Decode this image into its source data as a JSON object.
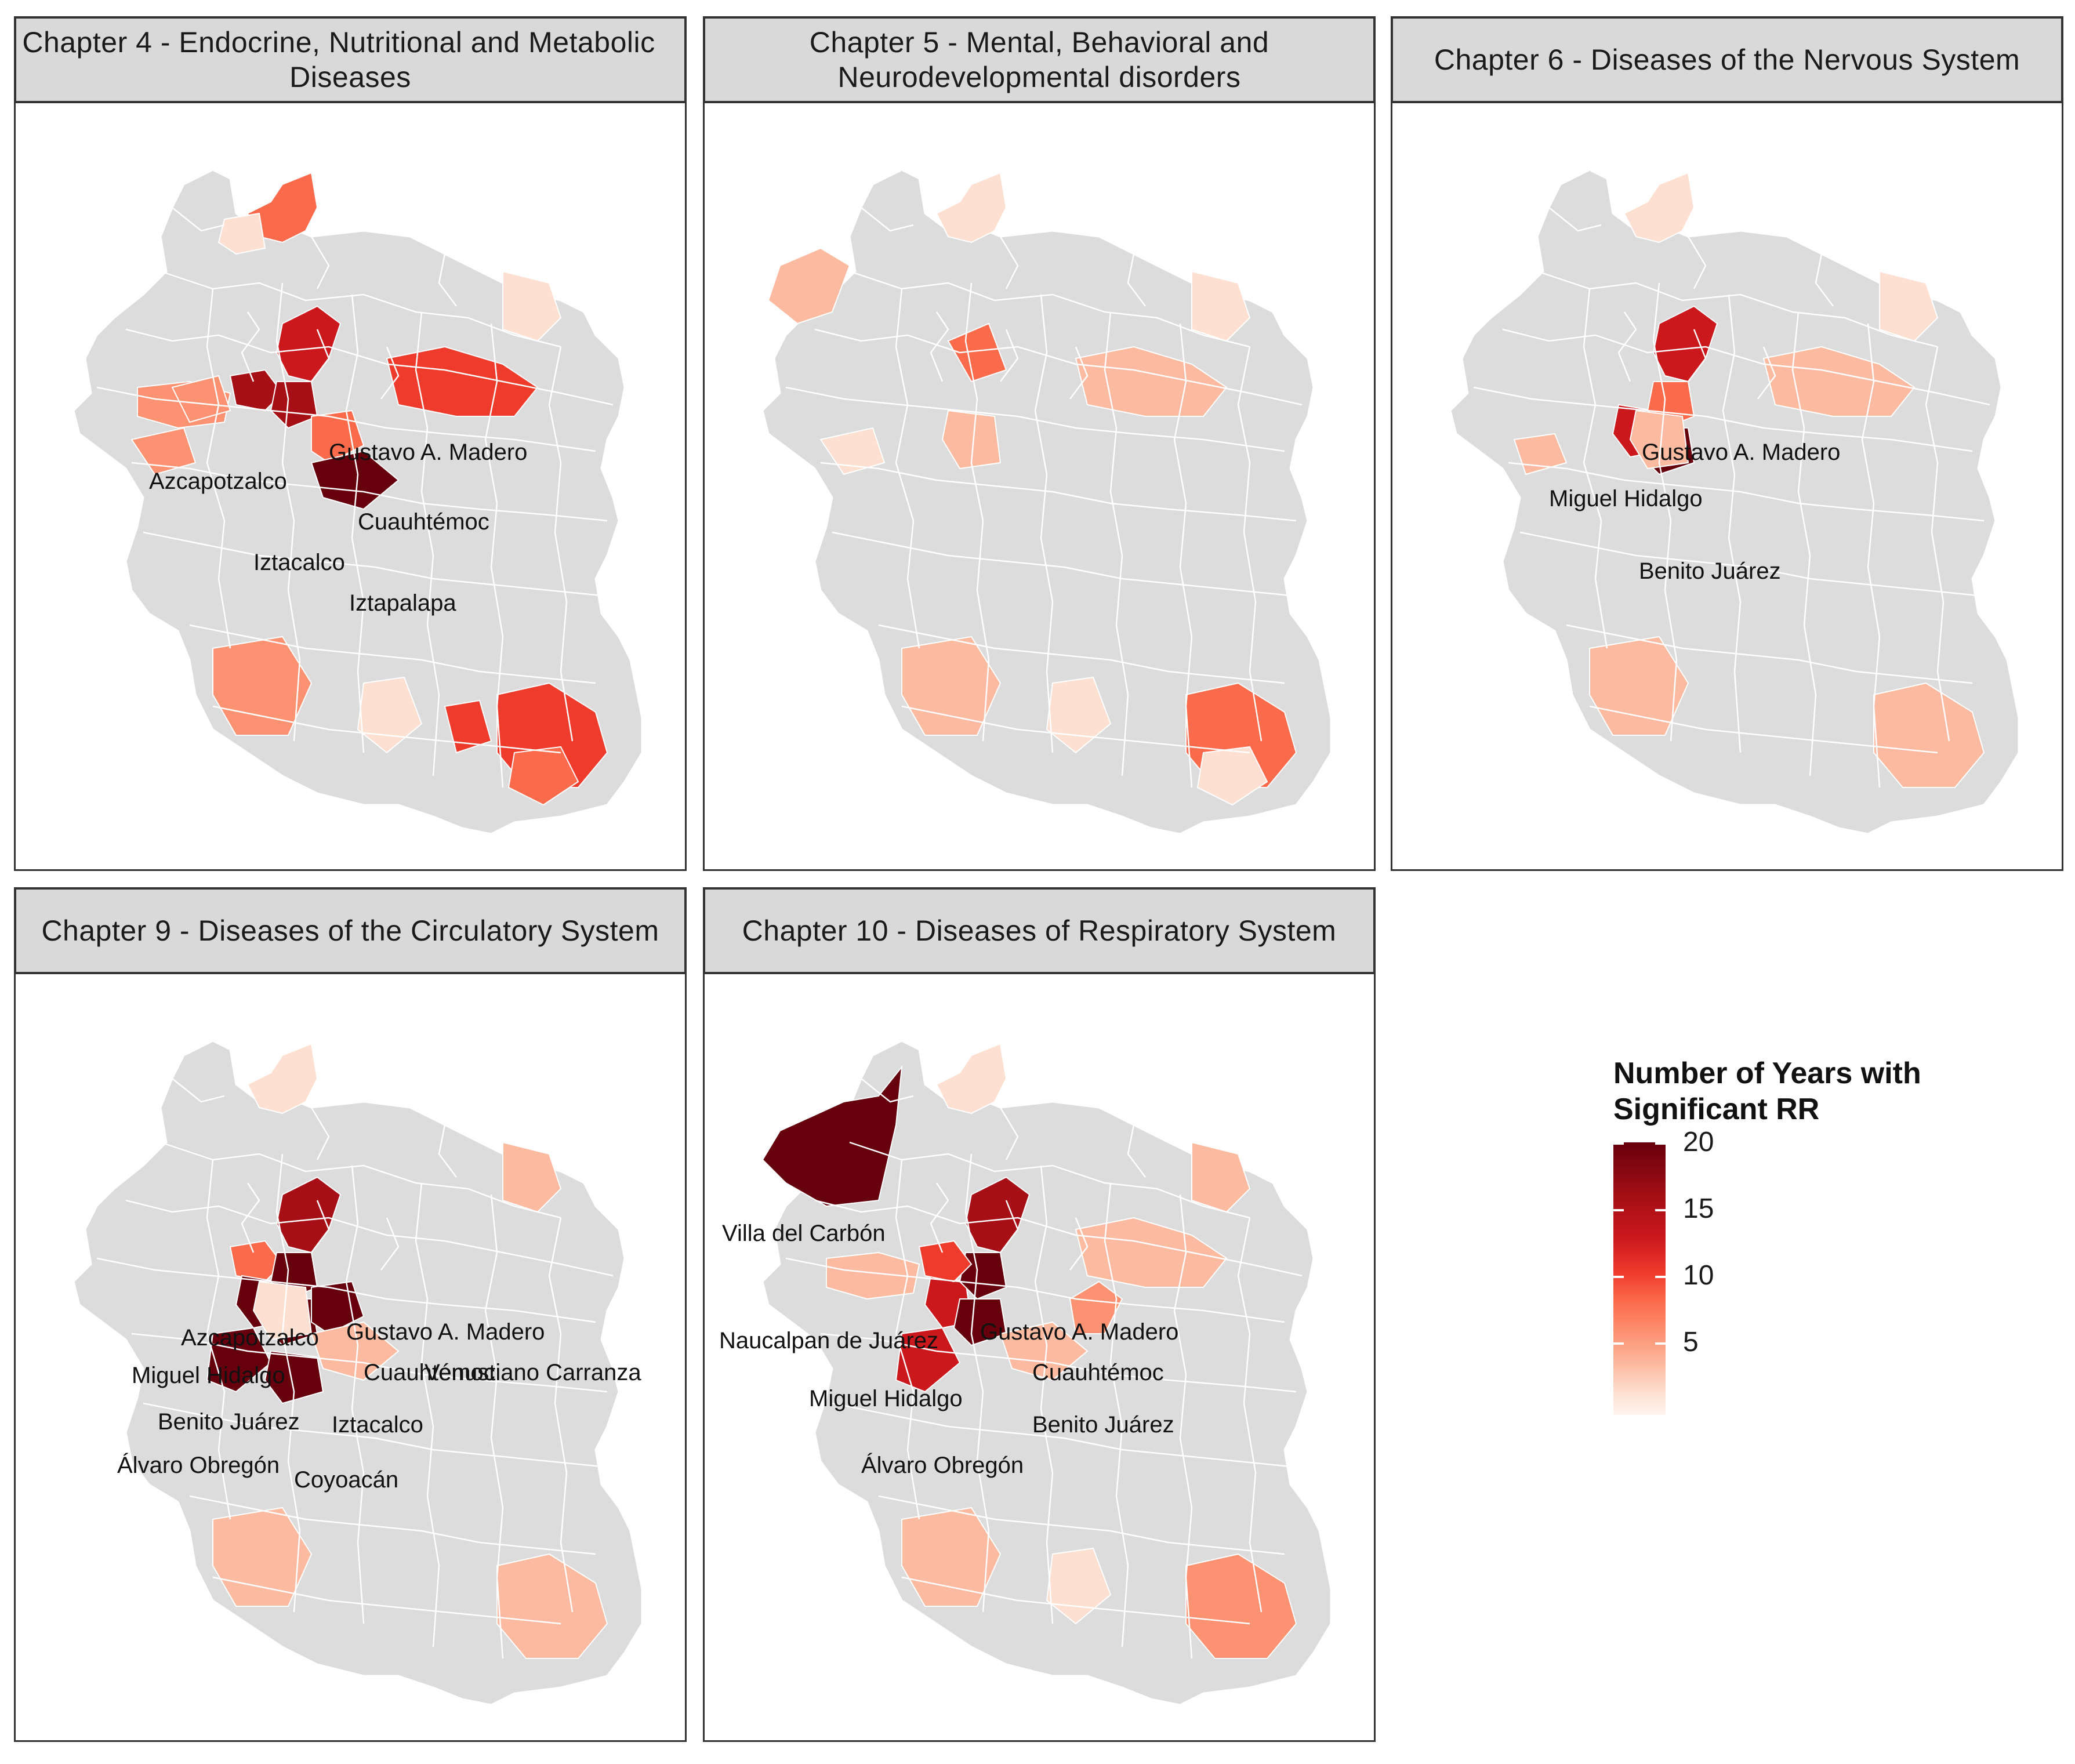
{
  "colors": {
    "no_data": "#dcdcdc",
    "border": "#ffffff",
    "scale": [
      "#fff5f0",
      "#fee0d2",
      "#fcbba1",
      "#fc9272",
      "#fb6a4a",
      "#ef3b2c",
      "#cb181d",
      "#a50f15",
      "#67000d"
    ]
  },
  "legend": {
    "title_line1": "Number of Years with",
    "title_line2": "Significant RR",
    "min": 0,
    "max": 20,
    "ticks": [
      {
        "value": 20,
        "label": "20"
      },
      {
        "value": 15,
        "label": "15"
      },
      {
        "value": 10,
        "label": "10"
      },
      {
        "value": 5,
        "label": "5"
      }
    ]
  },
  "panels": [
    {
      "title": [
        "Chapter 4 - Endocrine, Nutritional and Metabolic",
        "Diseases"
      ],
      "regions": [
        {
          "id": "north_top",
          "value": 9
        },
        {
          "id": "north_left",
          "value": 2
        },
        {
          "id": "gam",
          "value": 14
        },
        {
          "id": "azcapotzalco",
          "value": 18
        },
        {
          "id": "cuauhtemoc",
          "value": 17
        },
        {
          "id": "iztacalco",
          "value": 9
        },
        {
          "id": "iztapalapa",
          "value": 20
        },
        {
          "id": "naucalpan",
          "value": 7
        },
        {
          "id": "east",
          "value": 13
        },
        {
          "id": "center_west",
          "value": 7
        },
        {
          "id": "mid_west",
          "value": 7
        },
        {
          "id": "se_big",
          "value": 12
        },
        {
          "id": "south_west",
          "value": 7
        },
        {
          "id": "south_mid",
          "value": 3
        },
        {
          "id": "south_east",
          "value": 9
        },
        {
          "id": "south_small",
          "value": 13
        },
        {
          "id": "east_top",
          "value": 3
        }
      ],
      "labels": [
        {
          "text": "Gustavo A. Madero",
          "region": "gam"
        },
        {
          "text": "Azcapotzalco",
          "region": "azcapotzalco"
        },
        {
          "text": "Cuauhtémoc",
          "region": "cuauhtemoc"
        },
        {
          "text": "Iztacalco",
          "region": "iztacalco"
        },
        {
          "text": "Iztapalapa",
          "region": "iztapalapa"
        }
      ]
    },
    {
      "title": [
        "Chapter 5 - Mental, Behavioral and",
        "Neurodevelopmental disorders"
      ],
      "regions": [
        {
          "id": "west_far",
          "value": 4
        },
        {
          "id": "north_top",
          "value": 2
        },
        {
          "id": "center",
          "value": 11
        },
        {
          "id": "center_south",
          "value": 6
        },
        {
          "id": "east",
          "value": 5
        },
        {
          "id": "east_top",
          "value": 3
        },
        {
          "id": "mid_west",
          "value": 3
        },
        {
          "id": "south_west",
          "value": 4
        },
        {
          "id": "se_big",
          "value": 9
        },
        {
          "id": "south_east",
          "value": 3
        },
        {
          "id": "south_mid",
          "value": 3
        }
      ],
      "labels": []
    },
    {
      "title": [
        "Chapter 6 - Diseases of the Nervous System"
      ],
      "regions": [
        {
          "id": "gam",
          "value": 16
        },
        {
          "id": "miguel_hidalgo",
          "value": 14
        },
        {
          "id": "benito_juarez",
          "value": 20
        },
        {
          "id": "cuauhtemoc",
          "value": 10
        },
        {
          "id": "east",
          "value": 4
        },
        {
          "id": "north_top",
          "value": 3
        },
        {
          "id": "west_mid",
          "value": 4
        },
        {
          "id": "south_west",
          "value": 5
        },
        {
          "id": "se_big",
          "value": 4
        },
        {
          "id": "east_top",
          "value": 2
        },
        {
          "id": "center_south",
          "value": 5
        }
      ],
      "labels": [
        {
          "text": "Gustavo A. Madero",
          "region": "gam"
        },
        {
          "text": "Miguel Hidalgo",
          "region": "miguel_hidalgo"
        },
        {
          "text": "Benito Juárez",
          "region": "benito_juarez"
        }
      ]
    },
    {
      "title": [
        "Chapter 9 - Diseases of the Circulatory System"
      ],
      "regions": [
        {
          "id": "azcapotzalco",
          "value": 11
        },
        {
          "id": "gam",
          "value": 18
        },
        {
          "id": "miguel_hidalgo",
          "value": 19
        },
        {
          "id": "cuauhtemoc",
          "value": 20
        },
        {
          "id": "benito_juarez",
          "value": 20
        },
        {
          "id": "iztacalco",
          "value": 19
        },
        {
          "id": "alvaro_obregon",
          "value": 19
        },
        {
          "id": "coyoacan",
          "value": 20
        },
        {
          "id": "south_west",
          "value": 6
        },
        {
          "id": "east_top",
          "value": 5
        },
        {
          "id": "se_big",
          "value": 5
        },
        {
          "id": "north_top",
          "value": 2
        },
        {
          "id": "iztapalapa",
          "value": 5
        },
        {
          "id": "center_south",
          "value": 3
        }
      ],
      "labels": [
        {
          "text": "Azcapotzalco",
          "region": "azcapotzalco"
        },
        {
          "text": "Gustavo A. Madero",
          "region": "gam"
        },
        {
          "text": "Miguel Hidalgo",
          "region": "miguel_hidalgo"
        },
        {
          "text": "Cuauhtémoc",
          "region": "cuauhtemoc"
        },
        {
          "text": "Venustiano Carranza",
          "region": "venustiano_carranza"
        },
        {
          "text": "Benito Juárez",
          "region": "benito_juarez"
        },
        {
          "text": "Iztacalco",
          "region": "iztacalco"
        },
        {
          "text": "Álvaro Obregón",
          "region": "alvaro_obregon"
        },
        {
          "text": "Coyoacán",
          "region": "coyoacan"
        }
      ]
    },
    {
      "title": [
        "Chapter 10 - Diseases of Respiratory System"
      ],
      "regions": [
        {
          "id": "villa_del_carbon",
          "value": 20
        },
        {
          "id": "naucalpan",
          "value": 4
        },
        {
          "id": "gam",
          "value": 18
        },
        {
          "id": "gam_north",
          "value": 8
        },
        {
          "id": "miguel_hidalgo",
          "value": 15
        },
        {
          "id": "cuauhtemoc",
          "value": 20
        },
        {
          "id": "benito_juarez",
          "value": 19
        },
        {
          "id": "iztapalapa",
          "value": 6
        },
        {
          "id": "alvaro_obregon",
          "value": 14
        },
        {
          "id": "azcapotzalco",
          "value": 12
        },
        {
          "id": "east",
          "value": 4
        },
        {
          "id": "east_top",
          "value": 5
        },
        {
          "id": "north_top",
          "value": 2
        },
        {
          "id": "se_big",
          "value": 7
        },
        {
          "id": "south_west",
          "value": 4
        },
        {
          "id": "south_mid",
          "value": 3
        }
      ],
      "labels": [
        {
          "text": "Villa del Carbón",
          "region": "villa_del_carbon"
        },
        {
          "text": "Naucalpan de Juárez",
          "region": "naucalpan"
        },
        {
          "text": "Gustavo A. Madero",
          "region": "gam"
        },
        {
          "text": "Cuauhtémoc",
          "region": "cuauhtemoc"
        },
        {
          "text": "Miguel Hidalgo",
          "region": "miguel_hidalgo"
        },
        {
          "text": "Benito Juárez",
          "region": "benito_juarez"
        },
        {
          "text": "Álvaro Obregón",
          "region": "alvaro_obregon"
        }
      ]
    }
  ]
}
